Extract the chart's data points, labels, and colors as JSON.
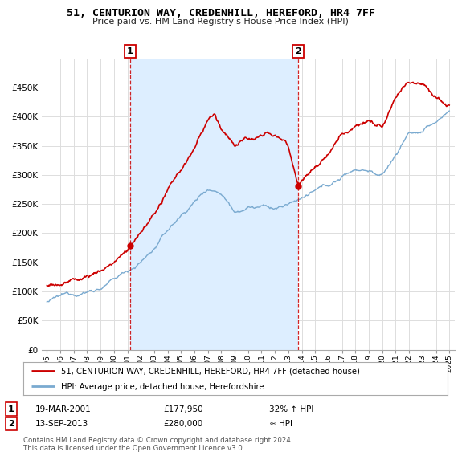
{
  "title": "51, CENTURION WAY, CREDENHILL, HEREFORD, HR4 7FF",
  "subtitle": "Price paid vs. HM Land Registry's House Price Index (HPI)",
  "red_label": "51, CENTURION WAY, CREDENHILL, HEREFORD, HR4 7FF (detached house)",
  "blue_label": "HPI: Average price, detached house, Herefordshire",
  "annotation1_date": "19-MAR-2001",
  "annotation1_price": "£177,950",
  "annotation1_hpi": "32% ↑ HPI",
  "annotation2_date": "13-SEP-2013",
  "annotation2_price": "£280,000",
  "annotation2_hpi": "≈ HPI",
  "footer": "Contains HM Land Registry data © Crown copyright and database right 2024.\nThis data is licensed under the Open Government Licence v3.0.",
  "ylim": [
    0,
    500000
  ],
  "yticks": [
    0,
    50000,
    100000,
    150000,
    200000,
    250000,
    300000,
    350000,
    400000,
    450000
  ],
  "background_color": "#ffffff",
  "grid_color": "#dddddd",
  "red_color": "#cc0000",
  "blue_color": "#7aaad0",
  "shade_color": "#ddeeff",
  "marker1_x_year": 2001.21,
  "marker2_x_year": 2013.71,
  "marker1_y": 177950,
  "marker2_y": 280000,
  "xmin": 1994.6,
  "xmax": 2025.4
}
